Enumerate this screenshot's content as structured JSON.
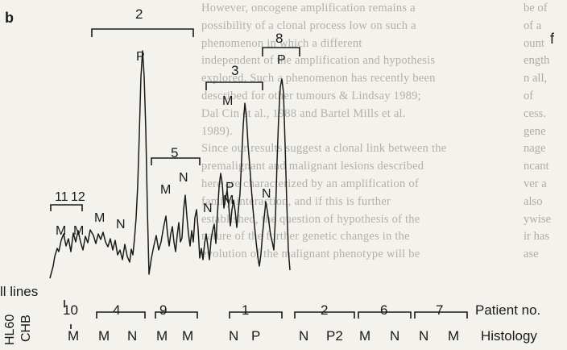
{
  "figure": {
    "panel_label": "b",
    "right_panel_label": "f",
    "cell_lines_label": "ll lines",
    "cell_line_names": [
      "HL60",
      "CHB"
    ],
    "patient_axis_label": "Patient no.",
    "histology_axis_label": "Histology"
  },
  "peak_groups": [
    {
      "label": "2"
    },
    {
      "label": "5"
    },
    {
      "label": "3"
    },
    {
      "label": "8"
    }
  ],
  "peak_labels": [
    {
      "text": "11"
    },
    {
      "text": "12"
    },
    {
      "text": "M"
    },
    {
      "text": "M"
    },
    {
      "text": "M"
    },
    {
      "text": "N"
    },
    {
      "text": "P"
    },
    {
      "text": "M"
    },
    {
      "text": "N"
    },
    {
      "text": "M"
    },
    {
      "text": "P"
    },
    {
      "text": "M"
    },
    {
      "text": "N"
    },
    {
      "text": "N"
    },
    {
      "text": "P"
    }
  ],
  "patients": [
    {
      "no": "10",
      "histology": [
        "M"
      ]
    },
    {
      "no": "4",
      "histology": [
        "M",
        "N"
      ]
    },
    {
      "no": "9",
      "histology": [
        "M"
      ]
    },
    {
      "no": "",
      "histology": [
        "M"
      ]
    },
    {
      "no": "1",
      "histology": [
        "N",
        "P"
      ]
    },
    {
      "no": "2",
      "histology": [
        "N",
        "P2"
      ]
    },
    {
      "no": "6",
      "histology": [
        "M",
        "N"
      ]
    },
    {
      "no": "7",
      "histology": [
        "N",
        "M"
      ]
    }
  ],
  "background_text": {
    "lines": [
      "However, oncogene amplification remains a",
      "possibility of a clonal process low on such a",
      "phenomenon in which a different",
      "independent of the amplification and hypothesis",
      "explored. Such a phenomenon has recently been",
      "described for other tumours & Lindsay 1989;",
      "Dal Cin et al., 1988 and Bartel Mills et al.",
      "1989).",
      "Since our results suggest a clonal link between the",
      "premalignant and malignant lesions described",
      "here are characterized by an amplification of",
      "family interaction, and if this is further",
      "established, the question of hypothesis of the",
      "nature of the further genetic changes in the",
      "evolution of the malignant phenotype will be"
    ],
    "right_column": [
      "be of",
      "of a",
      "ount",
      "ength",
      "n all,",
      "of",
      "cess.",
      "gene",
      "nage",
      "ncant",
      "ver a",
      "also",
      "ywise",
      "ir has",
      "ase"
    ]
  }
}
